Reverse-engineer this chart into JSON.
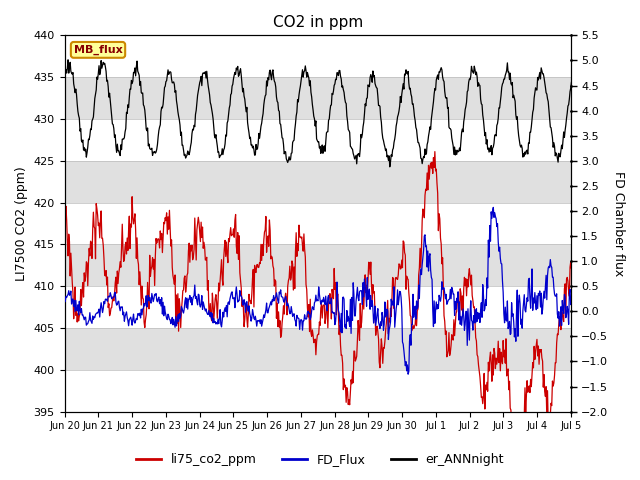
{
  "title": "CO2 in ppm",
  "ylabel_left": "LI7500 CO2 (ppm)",
  "ylabel_right": "FD Chamber flux",
  "ylim_left": [
    395,
    440
  ],
  "ylim_right": [
    -2.0,
    5.5
  ],
  "yticks_left": [
    395,
    400,
    405,
    410,
    415,
    420,
    425,
    430,
    435,
    440
  ],
  "yticks_right": [
    -2.0,
    -1.5,
    -1.0,
    -0.5,
    0.0,
    0.5,
    1.0,
    1.5,
    2.0,
    2.5,
    3.0,
    3.5,
    4.0,
    4.5,
    5.0,
    5.5
  ],
  "xtick_labels": [
    "Jun 20",
    "Jun 21",
    "Jun 22",
    "Jun 23",
    "Jun 24",
    "Jun 25",
    "Jun 26",
    "Jun 27",
    "Jun 28",
    "Jun 29",
    "Jun 30",
    "Jul 1",
    "Jul 2",
    "Jul 3",
    "Jul 4",
    "Jul 5"
  ],
  "legend_labels": [
    "li75_co2_ppm",
    "FD_Flux",
    "er_ANNnight"
  ],
  "legend_colors": [
    "#cc0000",
    "#0000cc",
    "#000000"
  ],
  "mb_flux_label": "MB_flux",
  "mb_flux_bg": "#ffff99",
  "mb_flux_border": "#cc8800",
  "band_color": "#e0e0e0",
  "background_color": "#ffffff",
  "title_fontsize": 11,
  "axis_fontsize": 9,
  "tick_fontsize": 8,
  "xtick_fontsize": 7
}
